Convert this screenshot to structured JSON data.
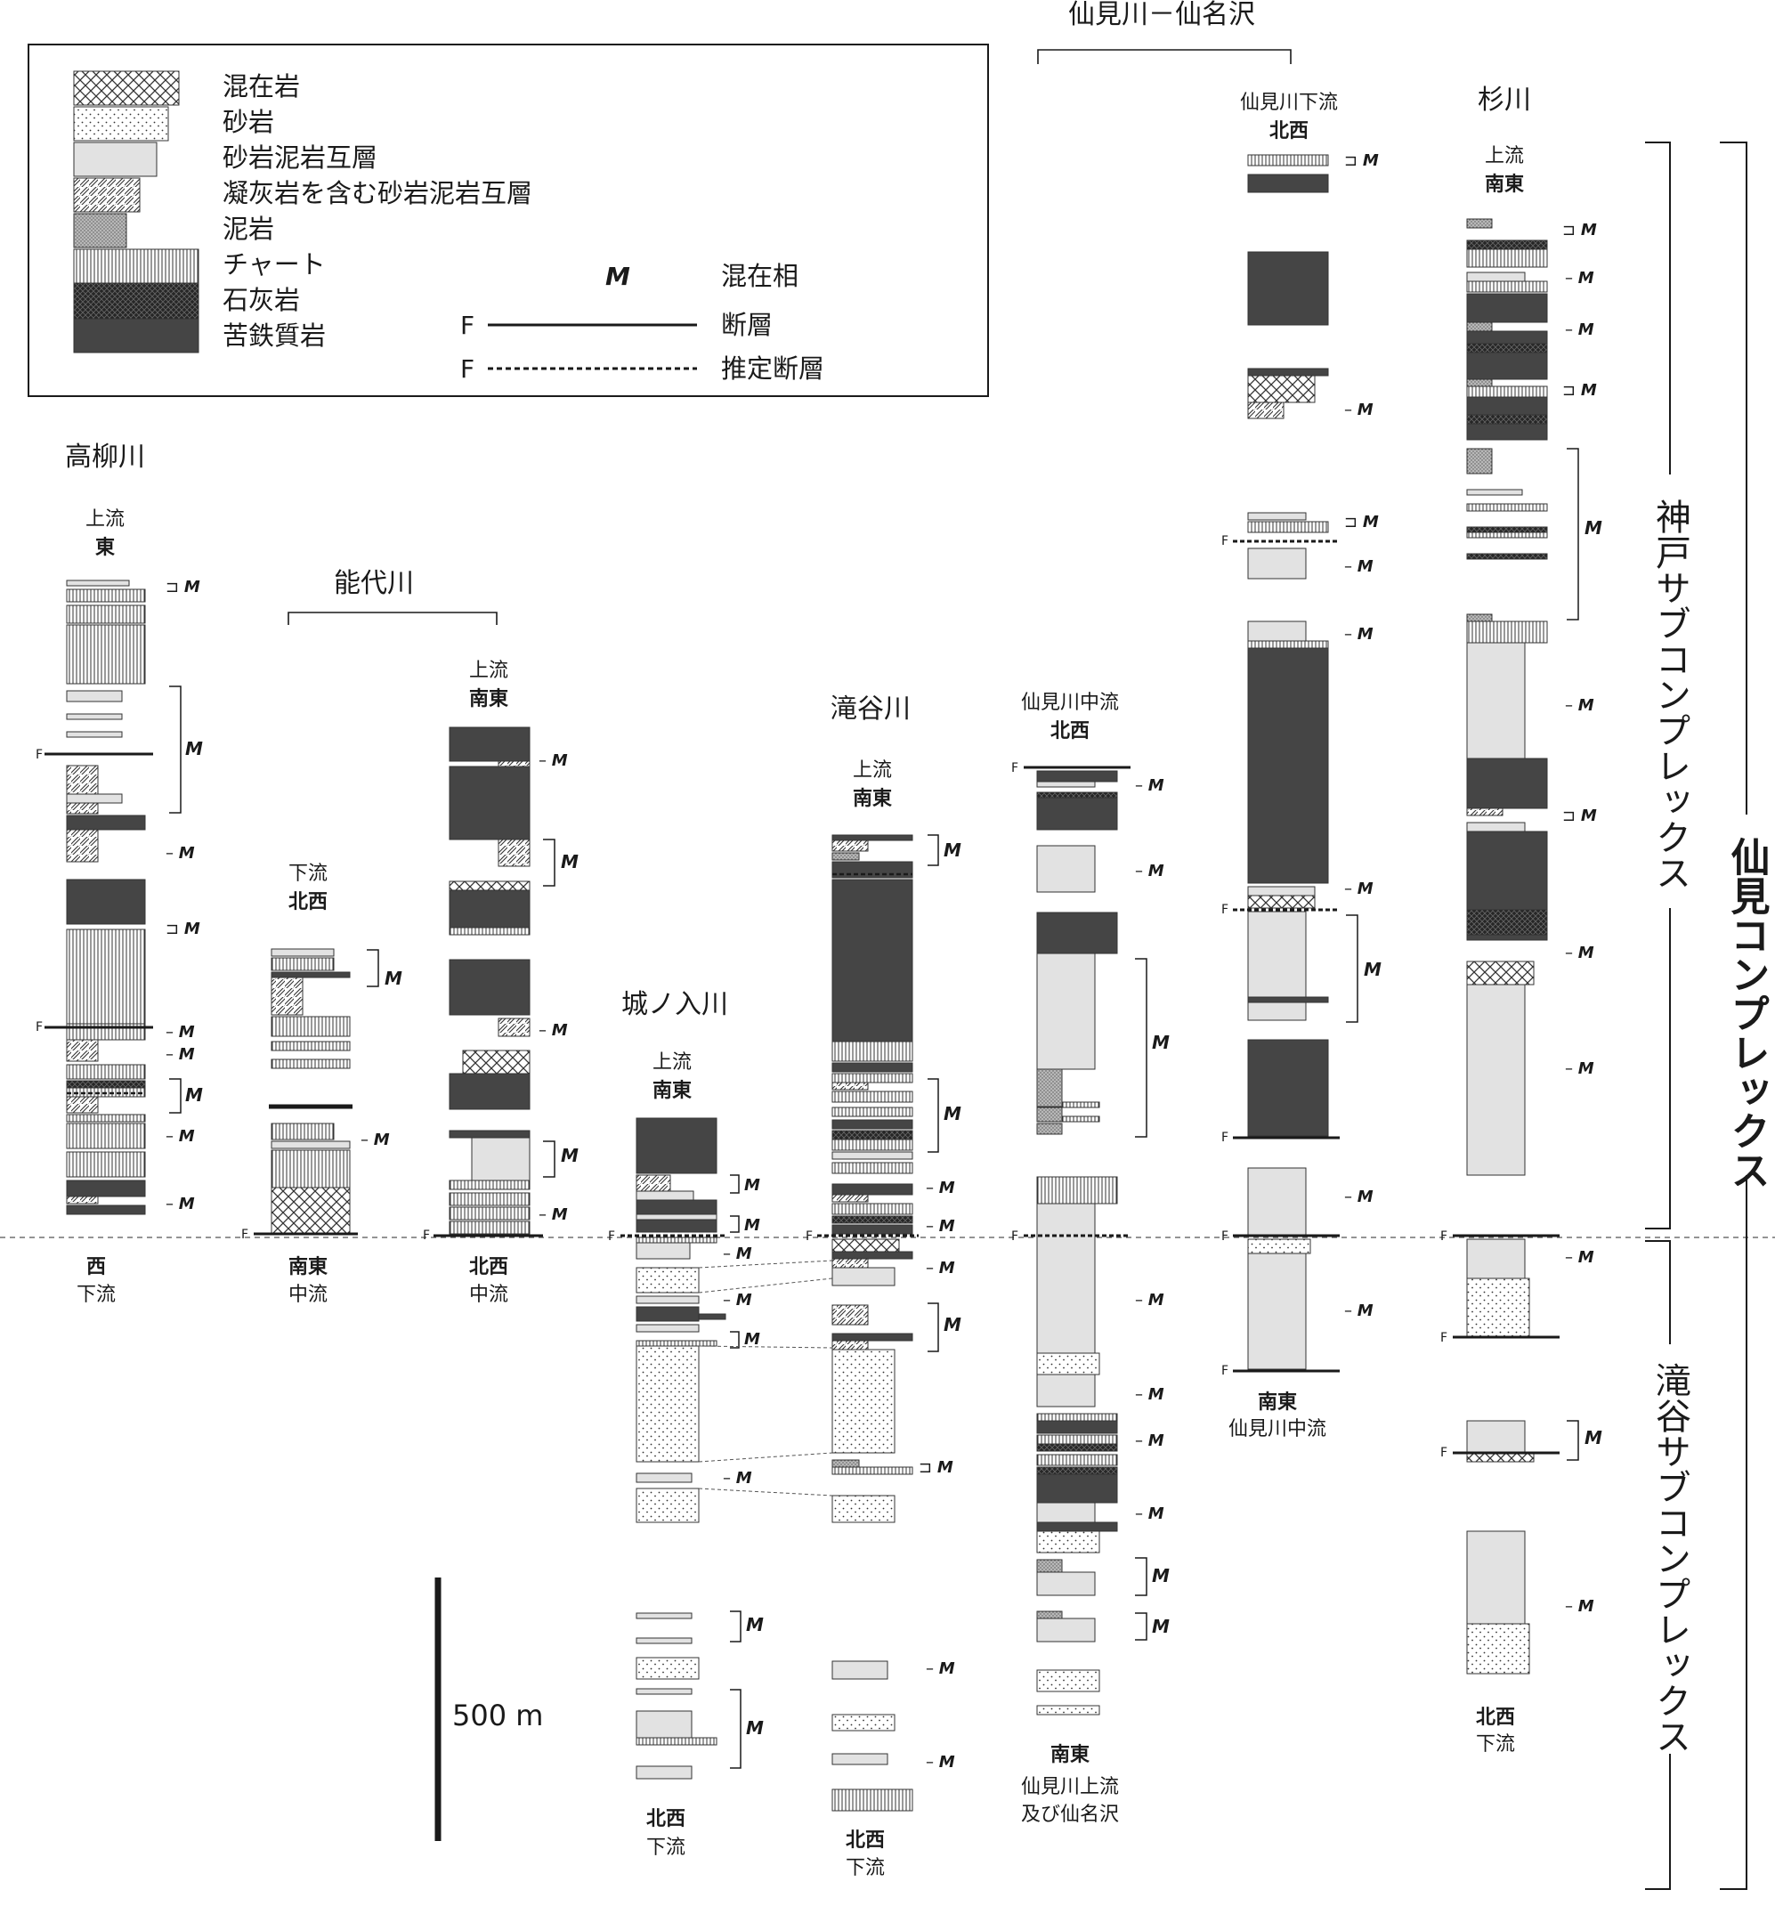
{
  "legend": {
    "lithologies": [
      {
        "key": "mixed",
        "label": "混在岩"
      },
      {
        "key": "sand",
        "label": "砂岩"
      },
      {
        "key": "alt",
        "label": "砂岩泥岩互層"
      },
      {
        "key": "tuff",
        "label": "凝灰岩を含む砂岩泥岩互層"
      },
      {
        "key": "mud",
        "label": "泥岩"
      },
      {
        "key": "chert",
        "label": "チャート"
      },
      {
        "key": "lime",
        "label": "石灰岩"
      },
      {
        "key": "mafic",
        "label": "苦鉄質岩"
      }
    ],
    "symbols": {
      "m_symbol": "M",
      "m_label": "混在相",
      "f_symbol": "F",
      "fault_label": "断層",
      "inferred_fault_label": "推定断層"
    }
  },
  "groups": {
    "noshiro": "能代川",
    "semi_senmei": "仙見川－仙名沢"
  },
  "columns": {
    "takayanagi": {
      "name": "高柳川",
      "top_a": "上流",
      "top_b": "東",
      "bot_a": "西",
      "bot_b": "下流"
    },
    "noshiro_lower": {
      "top_a": "下流",
      "top_b": "北西",
      "bot_a": "南東",
      "bot_b": "中流"
    },
    "noshiro_upper": {
      "top_a": "上流",
      "top_b": "南東",
      "bot_a": "北西",
      "bot_b": "中流"
    },
    "jonoiri": {
      "name": "城ノ入川",
      "top_a": "上流",
      "top_b": "南東",
      "bot_a": "北西",
      "bot_b": "下流"
    },
    "takiya": {
      "name": "滝谷川",
      "top_a": "上流",
      "top_b": "南東",
      "bot_a": "北西",
      "bot_b": "下流"
    },
    "semi_mid": {
      "top_a": "仙見川中流",
      "top_b": "北西",
      "bot_a": "南東",
      "bot_b": "仙見川上流",
      "bot_c": "及び仙名沢"
    },
    "semi_lower": {
      "top_a": "仙見川下流",
      "top_b": "北西",
      "bot_a": "南東",
      "bot_b": "仙見川中流"
    },
    "sugi": {
      "name": "杉川",
      "top_a": "上流",
      "top_b": "南東",
      "bot_a": "北西",
      "bot_b": "下流"
    }
  },
  "complexes": {
    "kobe": "神戸サブコンプレックス",
    "takiya": "滝谷サブコンプレックス",
    "semi": "仙見コンプレックス"
  },
  "scale_label": "500 m",
  "colors": {
    "mafic": "#454545",
    "lime": "#262626",
    "alt": "#e2e2e2",
    "line": "#1a1a1a"
  }
}
